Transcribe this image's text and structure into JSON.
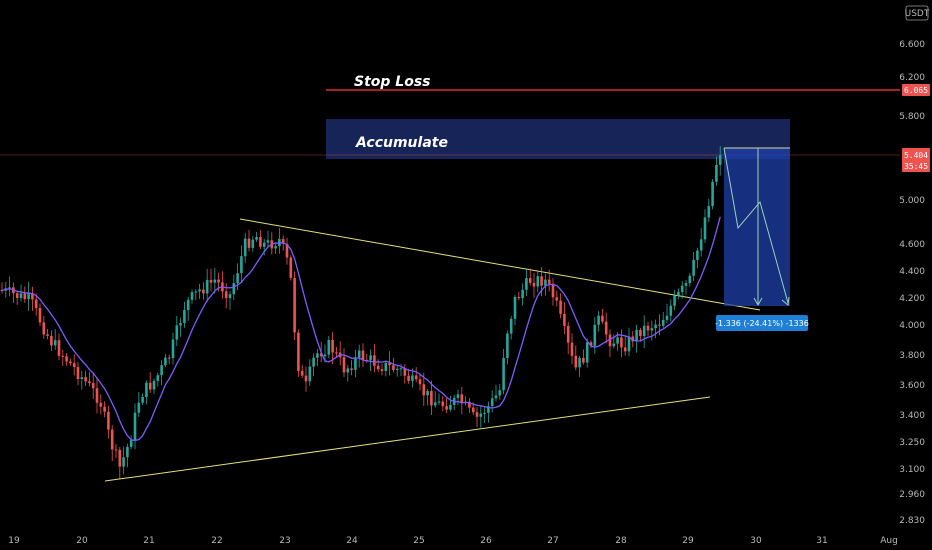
{
  "chart_data": {
    "type": "candlestick",
    "currency": "USDT",
    "x_ticks": [
      "19",
      "20",
      "21",
      "22",
      "23",
      "24",
      "25",
      "26",
      "27",
      "28",
      "29",
      "30",
      "31",
      "Aug"
    ],
    "y_ticks": [
      "6.600",
      "6.200",
      "5.800",
      "5.404",
      "5.000",
      "4.600",
      "4.400",
      "4.200",
      "4.000",
      "3.800",
      "3.600",
      "3.400",
      "3.250",
      "3.100",
      "2.960",
      "2.830"
    ],
    "ylim": [
      2.8,
      7.0
    ],
    "y_scale": "log",
    "last_price": {
      "value": 5.404,
      "label": "5.404",
      "countdown": "35:45"
    },
    "stop_loss": {
      "value": 6.065,
      "label": "6.065",
      "text": "Stop Loss"
    },
    "accumulate_zone": {
      "text": "Accumulate",
      "from_value": 5.33,
      "to_value": 5.75
    },
    "measure": {
      "label": "-1.336 (-24.41%) -1336"
    },
    "moving_average": {
      "color": "#7b5cff"
    },
    "up_color": "#26a69a",
    "down_color": "#ef5350",
    "trendline_color": "#e6e07a"
  }
}
